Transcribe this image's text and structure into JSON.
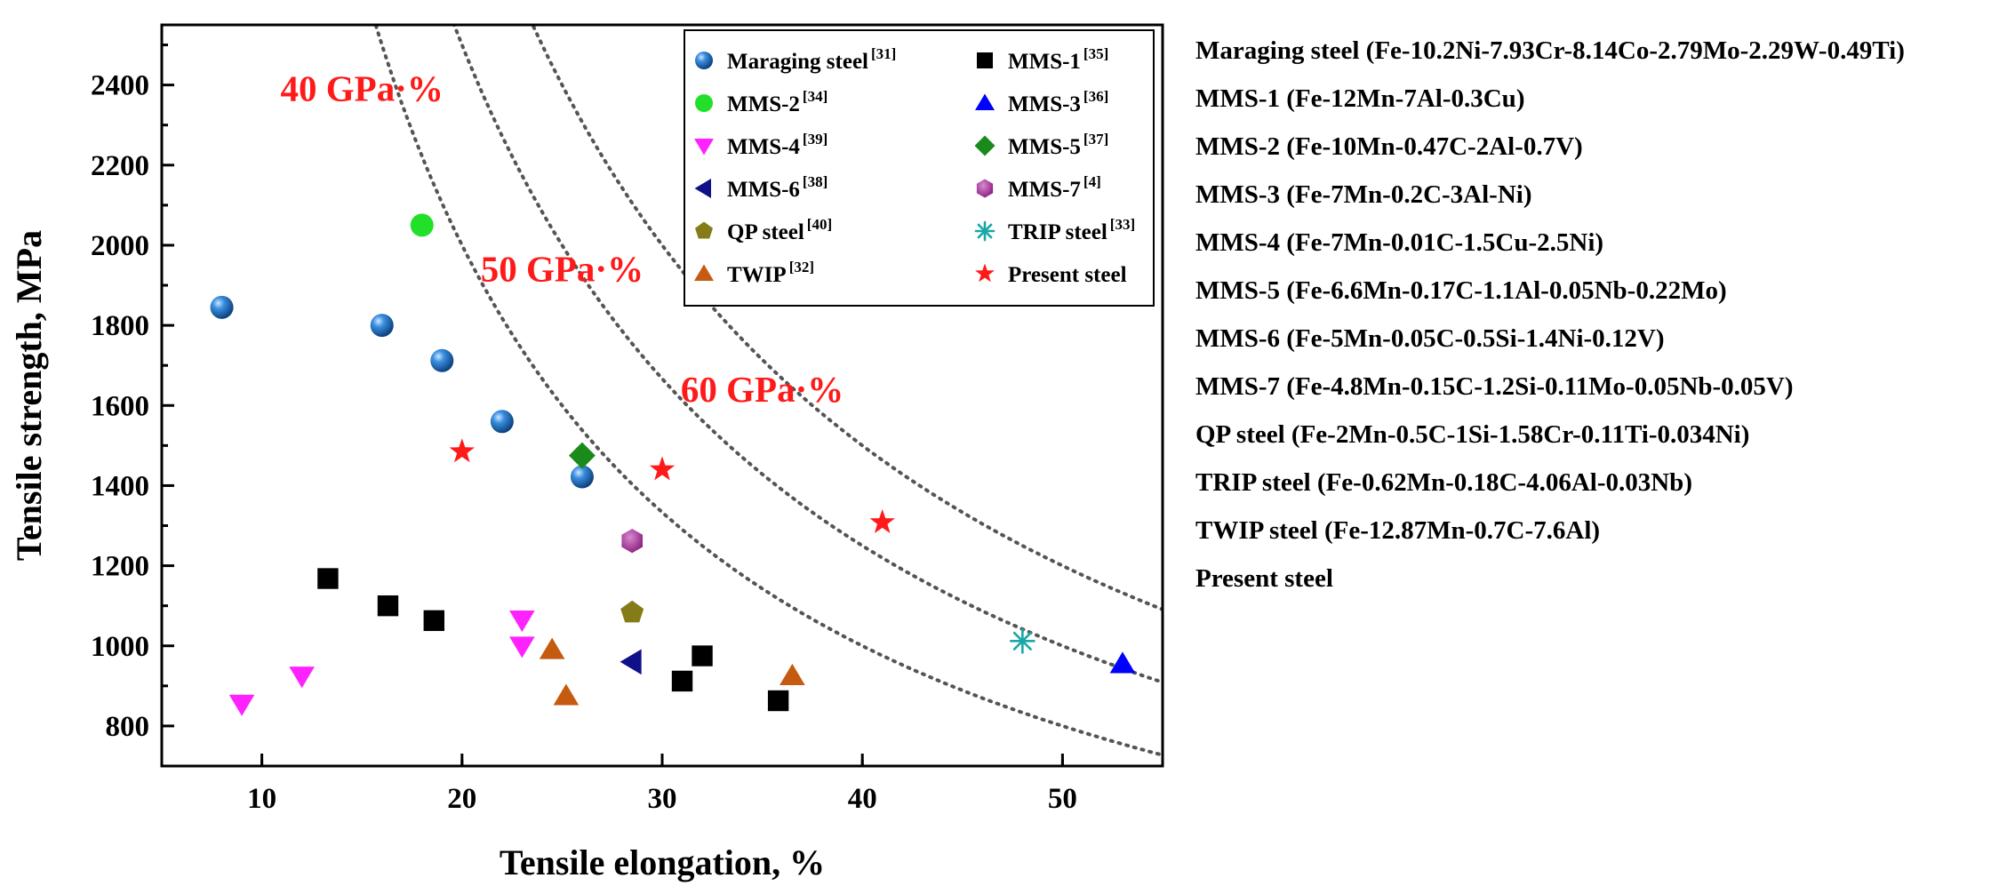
{
  "chart_data": {
    "type": "scatter",
    "xlabel": "Tensile elongation, %",
    "ylabel": "Tensile strength, MPa",
    "xlim": [
      5,
      55
    ],
    "ylim": [
      700,
      2550
    ],
    "xticks": [
      10,
      20,
      30,
      40,
      50
    ],
    "yticks": [
      800,
      1000,
      1200,
      1400,
      1600,
      1800,
      2000,
      2200,
      2400
    ],
    "product_curves": [
      {
        "label": "40 GPa·%",
        "value": 40000,
        "label_at": {
          "x": 15,
          "y": 2360
        }
      },
      {
        "label": "50 GPa·%",
        "value": 50000,
        "label_at": {
          "x": 25,
          "y": 1910
        }
      },
      {
        "label": "60 GPa·%",
        "value": 60000,
        "label_at": {
          "x": 35,
          "y": 1610
        }
      }
    ],
    "series": [
      {
        "name": "Maraging  steel",
        "ref": "[31]",
        "marker": "sphere",
        "color": "#1f6fb8",
        "points": [
          [
            8,
            1845
          ],
          [
            16,
            1800
          ],
          [
            19,
            1712
          ],
          [
            22,
            1560
          ],
          [
            26,
            1422
          ]
        ]
      },
      {
        "name": "MMS-1",
        "ref": "[35]",
        "marker": "square",
        "color": "#000000",
        "points": [
          [
            13.3,
            1168
          ],
          [
            16.3,
            1100
          ],
          [
            18.6,
            1063
          ],
          [
            31,
            912
          ],
          [
            32,
            975
          ],
          [
            35.8,
            863
          ]
        ]
      },
      {
        "name": "MMS-2",
        "ref": "[34]",
        "marker": "circle",
        "color": "#22e02a",
        "points": [
          [
            18,
            2050
          ]
        ]
      },
      {
        "name": "MMS-3",
        "ref": "[36]",
        "marker": "triangle-up",
        "color": "#0000ff",
        "points": [
          [
            53,
            955
          ]
        ]
      },
      {
        "name": "MMS-4",
        "ref": "[39]",
        "marker": "triangle-down",
        "color": "#ff22ff",
        "points": [
          [
            9,
            855
          ],
          [
            12,
            925
          ],
          [
            23,
            1065
          ],
          [
            23,
            1000
          ]
        ]
      },
      {
        "name": "MMS-5",
        "ref": "[37]",
        "marker": "diamond",
        "color": "#1a8a1a",
        "points": [
          [
            26,
            1475
          ]
        ]
      },
      {
        "name": "MMS-6",
        "ref": "[38]",
        "marker": "triangle-left",
        "color": "#101088",
        "points": [
          [
            28.5,
            960
          ]
        ]
      },
      {
        "name": "MMS-7",
        "ref": "[4]",
        "marker": "hexagon",
        "color": "#9b1f8e",
        "points": [
          [
            28.5,
            1262
          ]
        ]
      },
      {
        "name": "QP steel",
        "ref": "[40]",
        "marker": "pentagon",
        "color": "#857c18",
        "points": [
          [
            28.5,
            1083
          ]
        ]
      },
      {
        "name": "TRIP steel",
        "ref": "[33]",
        "marker": "asterisk",
        "color": "#1aa7a7",
        "points": [
          [
            48,
            1012
          ]
        ]
      },
      {
        "name": "TWIP",
        "ref": "[32]",
        "marker": "triangle-up",
        "color": "#c55a11",
        "points": [
          [
            24.5,
            990
          ],
          [
            25.2,
            875
          ],
          [
            36.5,
            925
          ]
        ]
      },
      {
        "name": "Present steel",
        "ref": "",
        "marker": "star",
        "color": "#ff1a1a",
        "points": [
          [
            20,
            1485
          ],
          [
            30,
            1440
          ],
          [
            41,
            1308
          ]
        ]
      }
    ],
    "legend_position": "top-right, inside plot area, two columns"
  },
  "descriptions": [
    "Maraging steel (Fe-10.2Ni-7.93Cr-8.14Co-2.79Mo-2.29W-0.49Ti)",
    "MMS-1 (Fe-12Mn-7Al-0.3Cu)",
    "MMS-2 (Fe-10Mn-0.47C-2Al-0.7V)",
    "MMS-3 (Fe-7Mn-0.2C-3Al-Ni)",
    "MMS-4 (Fe-7Mn-0.01C-1.5Cu-2.5Ni)",
    "MMS-5 (Fe-6.6Mn-0.17C-1.1Al-0.05Nb-0.22Mo)",
    "MMS-6 (Fe-5Mn-0.05C-0.5Si-1.4Ni-0.12V)",
    "MMS-7 (Fe-4.8Mn-0.15C-1.2Si-0.11Mo-0.05Nb-0.05V)",
    "QP steel (Fe-2Mn-0.5C-1Si-1.58Cr-0.11Ti-0.034Ni)",
    "TRIP steel (Fe-0.62Mn-0.18C-4.06Al-0.03Nb)",
    "TWIP steel (Fe-12.87Mn-0.7C-7.6Al)",
    "Present steel"
  ]
}
